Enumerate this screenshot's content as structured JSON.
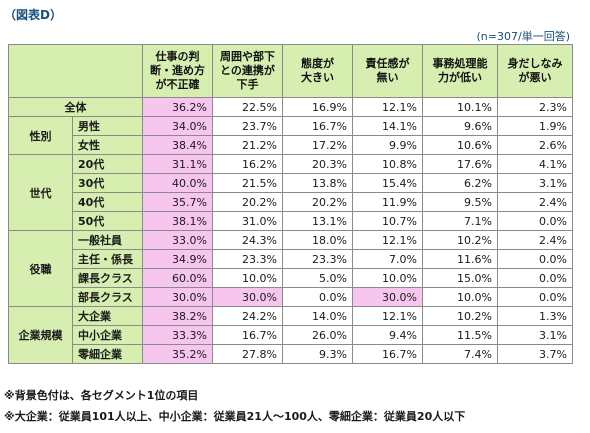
{
  "figure_label": "（図表D）",
  "sample_note": "(n=307/単一回答)",
  "columns": [
    "仕事の判断・進め方が不正確",
    "周囲や部下との連携が下手",
    "態度が大きい",
    "責任感が無い",
    "事務処理能力が低い",
    "身だしなみが悪い"
  ],
  "columns_lines": [
    [
      "仕事の判",
      "断・進め方",
      "が不正確"
    ],
    [
      "周囲や部下",
      "との連携が",
      "下手"
    ],
    [
      "態度が",
      "大きい"
    ],
    [
      "責任感が",
      "無い"
    ],
    [
      "事務処理能",
      "力が低い"
    ],
    [
      "身だしなみ",
      "が悪い"
    ]
  ],
  "groups": [
    {
      "label": "",
      "rows": [
        {
          "segment": "全体",
          "values": [
            "36.2%",
            "22.5%",
            "16.9%",
            "12.1%",
            "10.1%",
            "2.3%"
          ],
          "highlight": [
            0
          ]
        }
      ]
    },
    {
      "label": "性別",
      "rows": [
        {
          "segment": "男性",
          "values": [
            "34.0%",
            "23.7%",
            "16.7%",
            "14.1%",
            "9.6%",
            "1.9%"
          ],
          "highlight": [
            0
          ]
        },
        {
          "segment": "女性",
          "values": [
            "38.4%",
            "21.2%",
            "17.2%",
            "9.9%",
            "10.6%",
            "2.6%"
          ],
          "highlight": [
            0
          ]
        }
      ]
    },
    {
      "label": "世代",
      "rows": [
        {
          "segment": "20代",
          "values": [
            "31.1%",
            "16.2%",
            "20.3%",
            "10.8%",
            "17.6%",
            "4.1%"
          ],
          "highlight": [
            0
          ]
        },
        {
          "segment": "30代",
          "values": [
            "40.0%",
            "21.5%",
            "13.8%",
            "15.4%",
            "6.2%",
            "3.1%"
          ],
          "highlight": [
            0
          ]
        },
        {
          "segment": "40代",
          "values": [
            "35.7%",
            "20.2%",
            "20.2%",
            "11.9%",
            "9.5%",
            "2.4%"
          ],
          "highlight": [
            0
          ]
        },
        {
          "segment": "50代",
          "values": [
            "38.1%",
            "31.0%",
            "13.1%",
            "10.7%",
            "7.1%",
            "0.0%"
          ],
          "highlight": [
            0
          ]
        }
      ]
    },
    {
      "label": "役職",
      "rows": [
        {
          "segment": "一般社員",
          "values": [
            "33.0%",
            "24.3%",
            "18.0%",
            "12.1%",
            "10.2%",
            "2.4%"
          ],
          "highlight": [
            0
          ]
        },
        {
          "segment": "主任・係長",
          "values": [
            "34.9%",
            "23.3%",
            "23.3%",
            "7.0%",
            "11.6%",
            "0.0%"
          ],
          "highlight": [
            0
          ]
        },
        {
          "segment": "課長クラス",
          "values": [
            "60.0%",
            "10.0%",
            "5.0%",
            "10.0%",
            "15.0%",
            "0.0%"
          ],
          "highlight": [
            0
          ]
        },
        {
          "segment": "部長クラス",
          "values": [
            "30.0%",
            "30.0%",
            "0.0%",
            "30.0%",
            "10.0%",
            "0.0%"
          ],
          "highlight": [
            0,
            1,
            3
          ]
        }
      ]
    },
    {
      "label": "企業規模",
      "rows": [
        {
          "segment": "大企業",
          "values": [
            "38.2%",
            "24.2%",
            "14.0%",
            "12.1%",
            "10.2%",
            "1.3%"
          ],
          "highlight": [
            0
          ]
        },
        {
          "segment": "中小企業",
          "values": [
            "33.3%",
            "16.7%",
            "26.0%",
            "9.4%",
            "11.5%",
            "3.1%"
          ],
          "highlight": [
            0
          ]
        },
        {
          "segment": "零細企業",
          "values": [
            "35.2%",
            "27.8%",
            "9.3%",
            "16.7%",
            "7.4%",
            "3.7%"
          ],
          "highlight": [
            0
          ]
        }
      ]
    }
  ],
  "footnotes": [
    "※背景色付は、各セグメント1位の項目",
    "※大企業：従業員101人以上、中小企業：従業員21人～100人、零細企業：従業員20人以下"
  ],
  "colors": {
    "header_bg": "#d6efb0",
    "highlight": "#f7c6ee",
    "border": "#8a8a8a",
    "title": "#1a4f7a"
  }
}
